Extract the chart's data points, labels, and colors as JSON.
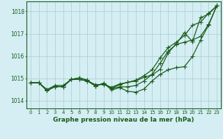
{
  "bg_color": "#d4eef4",
  "plot_bg_color": "#d4eef4",
  "grid_color": "#aacccc",
  "line_color": "#1a5c1a",
  "marker": "+",
  "marker_size": 4,
  "line_width": 0.9,
  "xlabel": "Graphe pression niveau de la mer (hPa)",
  "xlabel_fontsize": 6.5,
  "xlabel_color": "#1a5c1a",
  "tick_fontsize": 5,
  "ylabel_ticks": [
    1014,
    1015,
    1016,
    1017,
    1018
  ],
  "xlim": [
    -0.5,
    23.5
  ],
  "ylim": [
    1013.65,
    1018.45
  ],
  "xticks": [
    0,
    1,
    2,
    3,
    4,
    5,
    6,
    7,
    8,
    9,
    10,
    11,
    12,
    13,
    14,
    15,
    16,
    17,
    18,
    19,
    20,
    21,
    22,
    23
  ],
  "series": [
    [
      1014.8,
      1014.8,
      1014.5,
      1014.68,
      1014.68,
      1014.95,
      1014.95,
      1014.88,
      1014.72,
      1014.72,
      1014.6,
      1014.75,
      1014.82,
      1014.88,
      1015.05,
      1015.15,
      1015.4,
      1016.15,
      1016.55,
      1017.05,
      1016.65,
      1017.72,
      1017.88,
      1018.25
    ],
    [
      1014.8,
      1014.8,
      1014.45,
      1014.63,
      1014.63,
      1014.95,
      1014.95,
      1014.88,
      1014.65,
      1014.78,
      1014.48,
      1014.58,
      1014.42,
      1014.38,
      1014.52,
      1014.88,
      1015.18,
      1015.38,
      1015.48,
      1015.52,
      1015.98,
      1016.72,
      1017.38,
      1018.25
    ],
    [
      1014.8,
      1014.8,
      1014.45,
      1014.63,
      1014.63,
      1014.95,
      1015.02,
      1014.92,
      1014.65,
      1014.78,
      1014.55,
      1014.62,
      1014.62,
      1014.68,
      1014.88,
      1015.18,
      1015.68,
      1016.22,
      1016.52,
      1016.62,
      1016.72,
      1016.88,
      1017.42,
      1018.25
    ],
    [
      1014.8,
      1014.8,
      1014.45,
      1014.63,
      1014.63,
      1014.95,
      1015.02,
      1014.92,
      1014.65,
      1014.78,
      1014.55,
      1014.72,
      1014.82,
      1014.92,
      1015.12,
      1015.38,
      1015.92,
      1016.38,
      1016.62,
      1016.92,
      1017.38,
      1017.52,
      1017.92,
      1018.25
    ]
  ]
}
